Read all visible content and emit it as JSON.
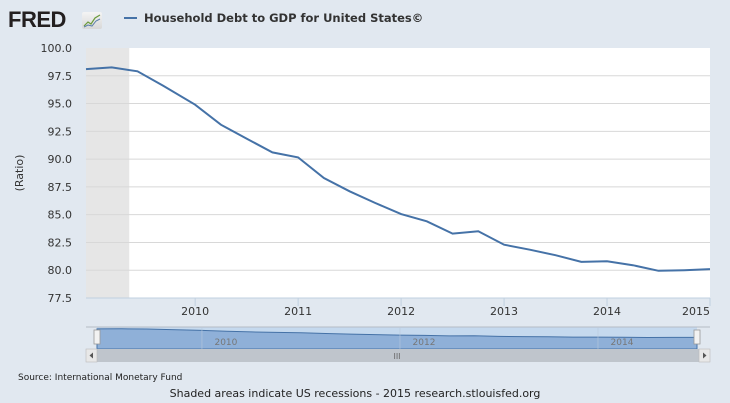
{
  "logo": {
    "text": "FRED",
    "icon": "chart-line-icon"
  },
  "legend": {
    "label": "Household Debt to GDP for United States©",
    "color": "#4572a7"
  },
  "source": "Source: International Monetary Fund",
  "footer": "Shaded areas indicate US recessions - 2015 research.stlouisfed.org",
  "navigator": {
    "labels": [
      "2010",
      "2012",
      "2014"
    ],
    "scrollbar_grip": "III"
  },
  "colors": {
    "line": "#4572a7",
    "recession": "#e6e6e6",
    "background": "#e1e8f0",
    "navigator_fill": "#8fb0d8"
  },
  "chart_data": {
    "type": "line",
    "title": "Household Debt to GDP for United States©",
    "xlabel": "",
    "ylabel": "(Ratio)",
    "ylim": [
      77.5,
      100.0
    ],
    "yticks": [
      "100.0",
      "97.5",
      "95.0",
      "92.5",
      "90.0",
      "87.5",
      "85.0",
      "82.5",
      "80.0",
      "77.5"
    ],
    "xticks": [
      "2010",
      "2011",
      "2012",
      "2013",
      "2014",
      "2015"
    ],
    "xlim": [
      2008.94,
      2015.0
    ],
    "grid": true,
    "legend_position": "top",
    "recessions": [
      [
        2008.94,
        2009.36
      ]
    ],
    "series": [
      {
        "name": "Household Debt to GDP for United States",
        "x": [
          2008.94,
          2009.19,
          2009.44,
          2009.69,
          2010.0,
          2010.25,
          2010.5,
          2010.75,
          2011.0,
          2011.25,
          2011.5,
          2011.75,
          2012.0,
          2012.25,
          2012.5,
          2012.75,
          2013.0,
          2013.25,
          2013.5,
          2013.75,
          2014.0,
          2014.25,
          2014.5,
          2014.75,
          2015.0
        ],
        "values": [
          98.1,
          98.25,
          97.9,
          96.6,
          94.9,
          93.1,
          91.85,
          90.6,
          90.15,
          88.3,
          87.1,
          86.05,
          85.05,
          84.4,
          83.3,
          83.5,
          82.3,
          81.85,
          81.35,
          80.75,
          80.8,
          80.45,
          79.95,
          80.0,
          80.1
        ]
      }
    ]
  }
}
